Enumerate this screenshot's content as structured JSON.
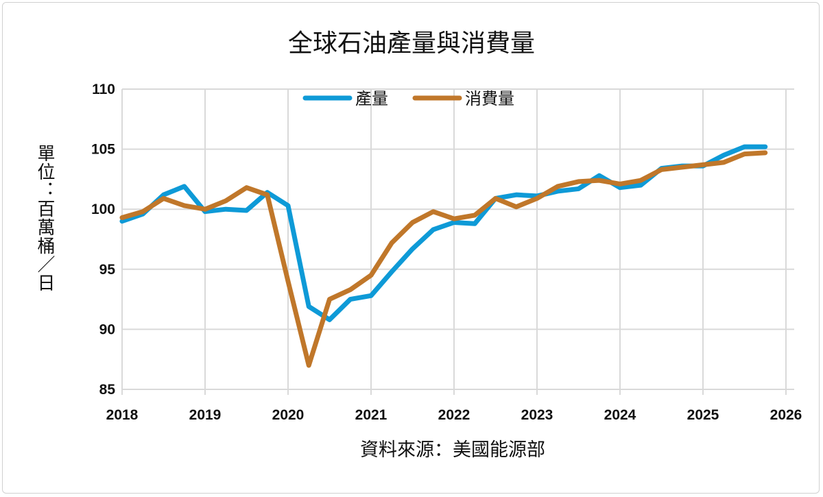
{
  "chart_data": {
    "type": "line",
    "title": "全球石油產量與消費量",
    "ylabel": "單位：百萬桶／日",
    "xlabel": "資料來源：美國能源部",
    "xlim": [
      2018,
      2026
    ],
    "ylim": [
      85,
      110
    ],
    "xticks": [
      "2018",
      "2019",
      "2020",
      "2021",
      "2022",
      "2023",
      "2024",
      "2025",
      "2026"
    ],
    "yticks": [
      "85",
      "90",
      "95",
      "100",
      "105",
      "110"
    ],
    "grid": true,
    "legend_position": "top",
    "x": [
      "2018Q1",
      "2018Q2",
      "2018Q3",
      "2018Q4",
      "2019Q1",
      "2019Q2",
      "2019Q3",
      "2019Q4",
      "2020Q1",
      "2020Q2",
      "2020Q3",
      "2020Q4",
      "2021Q1",
      "2021Q2",
      "2021Q3",
      "2021Q4",
      "2022Q1",
      "2022Q2",
      "2022Q3",
      "2022Q4",
      "2023Q1",
      "2023Q2",
      "2023Q3",
      "2023Q4",
      "2024Q1",
      "2024Q2",
      "2024Q3",
      "2024Q4",
      "2025Q1",
      "2025Q2",
      "2025Q3",
      "2025Q4"
    ],
    "series": [
      {
        "name": "產量",
        "color": "#0e9ad7",
        "values": [
          99.0,
          99.6,
          101.2,
          101.9,
          99.8,
          100.0,
          99.9,
          101.4,
          100.3,
          91.9,
          90.8,
          92.5,
          92.8,
          94.8,
          96.7,
          98.3,
          98.9,
          98.8,
          100.9,
          101.2,
          101.1,
          101.5,
          101.7,
          102.8,
          101.8,
          102.0,
          103.4,
          103.6,
          103.6,
          104.5,
          105.2,
          105.2
        ]
      },
      {
        "name": "消費量",
        "color": "#c0772a",
        "values": [
          99.3,
          99.8,
          100.9,
          100.3,
          100.0,
          100.7,
          101.8,
          101.2,
          94.0,
          87.0,
          92.5,
          93.3,
          94.5,
          97.2,
          98.9,
          99.8,
          99.2,
          99.5,
          100.9,
          100.2,
          100.9,
          101.9,
          102.3,
          102.4,
          102.1,
          102.4,
          103.3,
          103.5,
          103.7,
          103.9,
          104.6,
          104.7
        ]
      }
    ]
  }
}
